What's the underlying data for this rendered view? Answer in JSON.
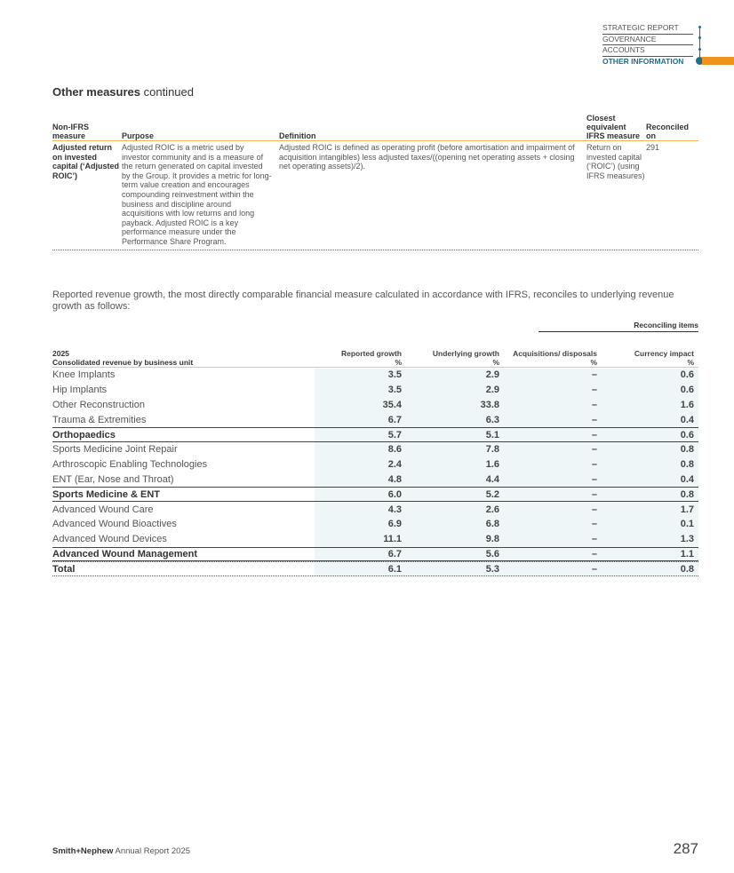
{
  "nav": {
    "items": [
      "STRATEGIC REPORT",
      "GOVERNANCE",
      "ACCOUNTS",
      "OTHER INFORMATION"
    ],
    "active": "OTHER INFORMATION",
    "accent": "#1f6f8b",
    "tab_color": "#f0921e"
  },
  "section": {
    "title_bold": "Other measures",
    "title_rest": " continued"
  },
  "measures_table": {
    "headers": [
      "Non-IFRS measure",
      "Purpose",
      "Definition",
      "Closest equivalent IFRS measure",
      "Reconciled on"
    ],
    "rows": [
      {
        "measure": "Adjusted return on invested capital (‘Adjusted ROIC’)",
        "purpose": "Adjusted ROIC is a metric used by investor community and is a measure of the return generated on capital invested by the Group. It provides a metric for long-term value creation and encourages compounding reinvestment within the business and discipline around acquisitions with low returns and long payback. Adjusted ROIC is a key performance measure under the Performance Share Program.",
        "definition": "Adjusted ROIC is defined as operating profit (before amortisation and impairment of acquisition intangibles) less adjusted taxes/((opening net operating assets + closing net operating assets)/2).",
        "ifrs": "Return on invested capital (‘ROIC’) (using IFRS measures)",
        "page": "291"
      }
    ]
  },
  "intro": "Reported revenue growth, the most directly comparable financial measure calculated in accordance with IFRS, reconciles to underlying revenue growth as follows:",
  "revenue_table": {
    "group_header": "Reconciling items",
    "year": "2025",
    "label_header": "Consolidated revenue by business unit",
    "columns": [
      {
        "name": "Reported growth",
        "unit": "%"
      },
      {
        "name": "Underlying growth",
        "unit": "%"
      },
      {
        "name": "Acquisitions/ disposals",
        "unit": "%"
      },
      {
        "name": "Currency impact",
        "unit": "%"
      }
    ],
    "rows": [
      {
        "label": "Knee Implants",
        "values": [
          "3.5",
          "2.9",
          "–",
          "0.6"
        ],
        "type": "item"
      },
      {
        "label": "Hip Implants",
        "values": [
          "3.5",
          "2.9",
          "–",
          "0.6"
        ],
        "type": "item"
      },
      {
        "label": "Other Reconstruction",
        "values": [
          "35.4",
          "33.8",
          "–",
          "1.6"
        ],
        "type": "item"
      },
      {
        "label": "Trauma & Extremities",
        "values": [
          "6.7",
          "6.3",
          "–",
          "0.4"
        ],
        "type": "item"
      },
      {
        "label": "Orthopaedics",
        "values": [
          "5.7",
          "5.1",
          "–",
          "0.6"
        ],
        "type": "sub"
      },
      {
        "label": "Sports Medicine Joint Repair",
        "values": [
          "8.6",
          "7.8",
          "–",
          "0.8"
        ],
        "type": "item"
      },
      {
        "label": "Arthroscopic Enabling Technologies",
        "values": [
          "2.4",
          "1.6",
          "–",
          "0.8"
        ],
        "type": "item"
      },
      {
        "label": "ENT (Ear, Nose and Throat)",
        "values": [
          "4.8",
          "4.4",
          "–",
          "0.4"
        ],
        "type": "item"
      },
      {
        "label": "Sports Medicine & ENT",
        "values": [
          "6.0",
          "5.2",
          "–",
          "0.8"
        ],
        "type": "sub"
      },
      {
        "label": "Advanced Wound Care",
        "values": [
          "4.3",
          "2.6",
          "–",
          "1.7"
        ],
        "type": "item"
      },
      {
        "label": "Advanced Wound Bioactives",
        "values": [
          "6.9",
          "6.8",
          "–",
          "0.1"
        ],
        "type": "item"
      },
      {
        "label": "Advanced Wound Devices",
        "values": [
          "11.1",
          "9.8",
          "–",
          "1.3"
        ],
        "type": "item"
      },
      {
        "label": "Advanced Wound Management",
        "values": [
          "6.7",
          "5.6",
          "–",
          "1.1"
        ],
        "type": "sub"
      },
      {
        "label": "Total",
        "values": [
          "6.1",
          "5.3",
          "–",
          "0.8"
        ],
        "type": "tot"
      }
    ]
  },
  "footer": {
    "brand": "Smith+Nephew",
    "report": "Annual Report 2025",
    "page": "287"
  }
}
